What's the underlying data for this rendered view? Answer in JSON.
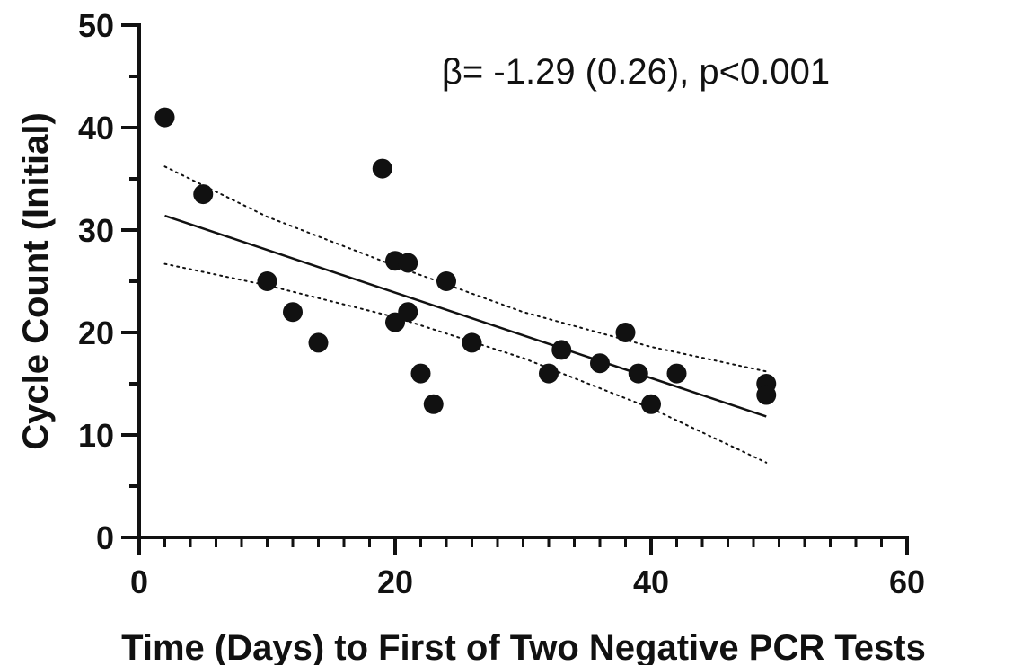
{
  "chart_data": {
    "type": "scatter",
    "xlabel": "Time (Days) to First of Two Negative PCR Tests",
    "ylabel": "Cycle Count (Initial)",
    "xlim": [
      0,
      60
    ],
    "ylim": [
      0,
      50
    ],
    "x_ticks": [
      "0",
      "20",
      "40",
      "60"
    ],
    "y_ticks": [
      "0",
      "10",
      "20",
      "30",
      "40",
      "50"
    ],
    "grid": false,
    "annotation": "β= -1.29 (0.26), p<0.001",
    "points": [
      {
        "x": 2,
        "y": 41
      },
      {
        "x": 5,
        "y": 33.5
      },
      {
        "x": 10,
        "y": 25
      },
      {
        "x": 12,
        "y": 22
      },
      {
        "x": 14,
        "y": 19
      },
      {
        "x": 19,
        "y": 36
      },
      {
        "x": 20,
        "y": 27
      },
      {
        "x": 20,
        "y": 21
      },
      {
        "x": 21,
        "y": 26.8
      },
      {
        "x": 21,
        "y": 22
      },
      {
        "x": 22,
        "y": 16
      },
      {
        "x": 23,
        "y": 13
      },
      {
        "x": 24,
        "y": 25
      },
      {
        "x": 26,
        "y": 19
      },
      {
        "x": 32,
        "y": 16
      },
      {
        "x": 33,
        "y": 18.3
      },
      {
        "x": 36,
        "y": 17
      },
      {
        "x": 38,
        "y": 20
      },
      {
        "x": 39,
        "y": 16
      },
      {
        "x": 40,
        "y": 13
      },
      {
        "x": 42,
        "y": 16
      },
      {
        "x": 49,
        "y": 15
      },
      {
        "x": 49,
        "y": 13.9
      }
    ],
    "fit_line": {
      "x": [
        2,
        49
      ],
      "y": [
        31.4,
        11.8
      ]
    },
    "ci_upper": {
      "x": [
        2,
        10,
        20,
        30,
        40,
        49
      ],
      "y": [
        36.2,
        31.3,
        26.5,
        22.0,
        18.6,
        16.2
      ]
    },
    "ci_lower": {
      "x": [
        2,
        10,
        20,
        30,
        40,
        49
      ],
      "y": [
        26.7,
        24.6,
        21.5,
        17.5,
        12.6,
        7.3
      ]
    }
  }
}
